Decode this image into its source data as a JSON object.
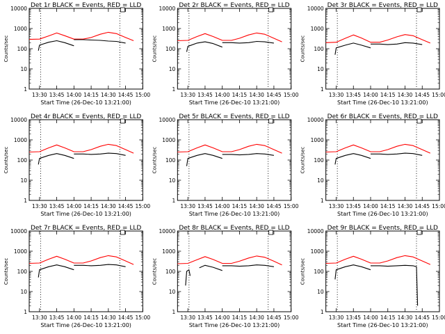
{
  "chart_data": [
    {
      "type": "line",
      "title": "Det 1r BLACK = Events, RED = LLD",
      "xlabel": "Start Time (26-Dec-10 13:21:00)",
      "ylabel": "Counts/sec",
      "yscale": "log",
      "ylim": [
        1,
        10000
      ],
      "xlim": [
        "13:21",
        "15:00"
      ],
      "x_ticks": [
        "13:30",
        "13:45",
        "14:00",
        "14:15",
        "14:30",
        "14:45",
        "15:00"
      ],
      "y_ticks": [
        "1",
        "10",
        "100",
        "1000",
        "10000"
      ],
      "vlines": [
        "13:31",
        "14:40"
      ],
      "series": [
        {
          "color": "#ff0000",
          "x": [
            "13:21",
            "13:30",
            "13:38",
            "13:45",
            "13:52",
            "14:00",
            "14:08",
            "14:15",
            "14:23",
            "14:30",
            "14:37",
            "14:45",
            "14:52"
          ],
          "values": [
            290,
            300,
            430,
            600,
            440,
            300,
            300,
            360,
            520,
            650,
            560,
            360,
            250
          ]
        },
        {
          "color": "#000000",
          "segments": [
            {
              "x": [
                "13:29",
                "13:30",
                "13:38",
                "13:45",
                "13:52",
                "14:00"
              ],
              "values": [
                80,
                150,
                210,
                250,
                200,
                140
              ]
            },
            {
              "x": [
                "14:00",
                "14:08",
                "14:15",
                "14:23",
                "14:30",
                "14:37",
                "14:45"
              ],
              "values": [
                280,
                280,
                270,
                260,
                240,
                230,
                190
              ]
            }
          ]
        }
      ]
    },
    {
      "type": "line",
      "title": "Det 2r BLACK = Events, RED = LLD",
      "xlabel": "Start Time (26-Dec-10 13:21:00)",
      "ylabel": "Counts/sec",
      "yscale": "log",
      "ylim": [
        1,
        10000
      ],
      "xlim": [
        "13:21",
        "15:00"
      ],
      "x_ticks": [
        "13:30",
        "13:45",
        "14:00",
        "14:15",
        "14:30",
        "14:45",
        "15:00"
      ],
      "y_ticks": [
        "1",
        "10",
        "100",
        "1000",
        "10000"
      ],
      "vlines": [
        "13:31",
        "14:40"
      ],
      "series": [
        {
          "color": "#ff0000",
          "x": [
            "13:21",
            "13:30",
            "13:38",
            "13:45",
            "13:52",
            "14:00",
            "14:08",
            "14:15",
            "14:23",
            "14:30",
            "14:37",
            "14:45",
            "14:52"
          ],
          "values": [
            250,
            260,
            400,
            560,
            400,
            260,
            260,
            330,
            480,
            600,
            520,
            330,
            220
          ]
        },
        {
          "color": "#000000",
          "segments": [
            {
              "x": [
                "13:29",
                "13:30",
                "13:38",
                "13:45",
                "13:52",
                "14:00"
              ],
              "values": [
                70,
                130,
                190,
                220,
                180,
                120
              ]
            },
            {
              "x": [
                "14:00",
                "14:08",
                "14:15",
                "14:23",
                "14:30",
                "14:37",
                "14:45"
              ],
              "values": [
                200,
                200,
                190,
                200,
                230,
                220,
                190
              ]
            }
          ]
        }
      ]
    },
    {
      "type": "line",
      "title": "Det 3r BLACK = Events, RED = LLD",
      "xlabel": "Start Time (26-Dec-10 13:21:00)",
      "ylabel": "Counts/sec",
      "yscale": "log",
      "ylim": [
        1,
        10000
      ],
      "xlim": [
        "13:21",
        "15:00"
      ],
      "x_ticks": [
        "13:30",
        "13:45",
        "14:00",
        "14:15",
        "14:30",
        "14:45",
        "15:00"
      ],
      "y_ticks": [
        "1",
        "10",
        "100",
        "1000",
        "10000"
      ],
      "vlines": [
        "13:31",
        "14:40"
      ],
      "series": [
        {
          "color": "#ff0000",
          "x": [
            "13:21",
            "13:30",
            "13:38",
            "13:45",
            "13:52",
            "14:00",
            "14:08",
            "14:15",
            "14:23",
            "14:30",
            "14:37",
            "14:45",
            "14:52"
          ],
          "values": [
            200,
            210,
            330,
            480,
            340,
            210,
            210,
            270,
            390,
            500,
            440,
            280,
            190
          ]
        },
        {
          "color": "#000000",
          "segments": [
            {
              "x": [
                "13:29",
                "13:30",
                "13:38",
                "13:45",
                "13:52",
                "14:00"
              ],
              "values": [
                50,
                110,
                150,
                190,
                150,
                110
              ]
            },
            {
              "x": [
                "14:00",
                "14:08",
                "14:15",
                "14:23",
                "14:30",
                "14:37",
                "14:45"
              ],
              "values": [
                170,
                170,
                160,
                170,
                200,
                190,
                160
              ]
            }
          ]
        }
      ]
    },
    {
      "type": "line",
      "title": "Det 4r BLACK = Events, RED = LLD",
      "xlabel": "Start Time (26-Dec-10 13:21:00)",
      "ylabel": "Counts/sec",
      "yscale": "log",
      "ylim": [
        1,
        10000
      ],
      "xlim": [
        "13:21",
        "15:00"
      ],
      "x_ticks": [
        "13:30",
        "13:45",
        "14:00",
        "14:15",
        "14:30",
        "14:45",
        "15:00"
      ],
      "y_ticks": [
        "1",
        "10",
        "100",
        "1000",
        "10000"
      ],
      "vlines": [
        "13:31",
        "14:40"
      ],
      "series": [
        {
          "color": "#ff0000",
          "x": [
            "13:21",
            "13:30",
            "13:38",
            "13:45",
            "13:52",
            "14:00",
            "14:08",
            "14:15",
            "14:23",
            "14:30",
            "14:37",
            "14:45",
            "14:52"
          ],
          "values": [
            250,
            260,
            400,
            560,
            400,
            260,
            260,
            330,
            480,
            600,
            520,
            330,
            220
          ]
        },
        {
          "color": "#000000",
          "segments": [
            {
              "x": [
                "13:29",
                "13:30",
                "13:38",
                "13:45",
                "13:52",
                "14:00"
              ],
              "values": [
                60,
                120,
                170,
                210,
                170,
                120
              ]
            },
            {
              "x": [
                "14:00",
                "14:08",
                "14:15",
                "14:23",
                "14:30",
                "14:37",
                "14:45"
              ],
              "values": [
                200,
                200,
                190,
                200,
                220,
                210,
                170
              ]
            }
          ]
        }
      ]
    },
    {
      "type": "line",
      "title": "Det 5r BLACK = Events, RED = LLD",
      "xlabel": "Start Time (26-Dec-10 13:21:00)",
      "ylabel": "Counts/sec",
      "yscale": "log",
      "ylim": [
        1,
        10000
      ],
      "xlim": [
        "13:21",
        "15:00"
      ],
      "x_ticks": [
        "13:30",
        "13:45",
        "14:00",
        "14:15",
        "14:30",
        "14:45",
        "15:00"
      ],
      "y_ticks": [
        "1",
        "10",
        "100",
        "1000",
        "10000"
      ],
      "vlines": [
        "13:31",
        "14:40"
      ],
      "series": [
        {
          "color": "#ff0000",
          "x": [
            "13:21",
            "13:30",
            "13:38",
            "13:45",
            "13:52",
            "14:00",
            "14:08",
            "14:15",
            "14:23",
            "14:30",
            "14:37",
            "14:45",
            "14:52"
          ],
          "values": [
            250,
            260,
            400,
            560,
            400,
            260,
            260,
            330,
            480,
            600,
            520,
            330,
            220
          ]
        },
        {
          "color": "#000000",
          "segments": [
            {
              "x": [
                "13:29",
                "13:30",
                "13:38",
                "13:45",
                "13:52",
                "14:00"
              ],
              "values": [
                50,
                120,
                170,
                210,
                170,
                120
              ]
            },
            {
              "x": [
                "14:00",
                "14:08",
                "14:15",
                "14:23",
                "14:30",
                "14:37",
                "14:45"
              ],
              "values": [
                190,
                190,
                180,
                190,
                210,
                200,
                170
              ]
            }
          ]
        }
      ]
    },
    {
      "type": "line",
      "title": "Det 6r BLACK = Events, RED = LLD",
      "xlabel": "Start Time (26-Dec-10 13:21:00)",
      "ylabel": "Counts/sec",
      "yscale": "log",
      "ylim": [
        1,
        10000
      ],
      "xlim": [
        "13:21",
        "15:00"
      ],
      "x_ticks": [
        "13:30",
        "13:45",
        "14:00",
        "14:15",
        "14:30",
        "14:45",
        "15:00"
      ],
      "y_ticks": [
        "1",
        "10",
        "100",
        "1000",
        "10000"
      ],
      "vlines": [
        "13:31",
        "14:40"
      ],
      "series": [
        {
          "color": "#ff0000",
          "x": [
            "13:21",
            "13:30",
            "13:38",
            "13:45",
            "13:52",
            "14:00",
            "14:08",
            "14:15",
            "14:23",
            "14:30",
            "14:37",
            "14:45",
            "14:52"
          ],
          "values": [
            250,
            260,
            400,
            560,
            400,
            260,
            260,
            330,
            480,
            600,
            520,
            330,
            220
          ]
        },
        {
          "color": "#000000",
          "segments": [
            {
              "x": [
                "13:29",
                "13:30",
                "13:38",
                "13:45",
                "13:52",
                "14:00"
              ],
              "values": [
                60,
                120,
                170,
                210,
                170,
                120
              ]
            },
            {
              "x": [
                "14:00",
                "14:08",
                "14:15",
                "14:23",
                "14:30",
                "14:37",
                "14:45"
              ],
              "values": [
                200,
                200,
                190,
                200,
                220,
                210,
                170
              ]
            }
          ]
        }
      ]
    },
    {
      "type": "line",
      "title": "Det 7r BLACK = Events, RED = LLD",
      "xlabel": "Start Time (26-Dec-10 13:21:00)",
      "ylabel": "Counts/sec",
      "yscale": "log",
      "ylim": [
        1,
        10000
      ],
      "xlim": [
        "13:21",
        "15:00"
      ],
      "x_ticks": [
        "13:30",
        "13:45",
        "14:00",
        "14:15",
        "14:30",
        "14:45",
        "15:00"
      ],
      "y_ticks": [
        "1",
        "10",
        "100",
        "1000",
        "10000"
      ],
      "vlines": [
        "13:31",
        "14:40"
      ],
      "series": [
        {
          "color": "#ff0000",
          "x": [
            "13:21",
            "13:30",
            "13:38",
            "13:45",
            "13:52",
            "14:00",
            "14:08",
            "14:15",
            "14:23",
            "14:30",
            "14:37",
            "14:45",
            "14:52"
          ],
          "values": [
            250,
            260,
            400,
            560,
            400,
            260,
            260,
            330,
            480,
            600,
            520,
            330,
            220
          ]
        },
        {
          "color": "#000000",
          "segments": [
            {
              "x": [
                "13:29",
                "13:30",
                "13:38",
                "13:45",
                "13:52",
                "14:00"
              ],
              "values": [
                50,
                120,
                170,
                210,
                170,
                120
              ]
            },
            {
              "x": [
                "14:00",
                "14:08",
                "14:15",
                "14:23",
                "14:30",
                "14:37",
                "14:45"
              ],
              "values": [
                200,
                200,
                190,
                200,
                220,
                210,
                170
              ]
            }
          ]
        }
      ]
    },
    {
      "type": "line",
      "title": "Det 8r BLACK = Events, RED = LLD",
      "xlabel": "Start Time (26-Dec-10 13:21:00)",
      "ylabel": "Counts/sec",
      "yscale": "log",
      "ylim": [
        1,
        10000
      ],
      "xlim": [
        "13:21",
        "15:00"
      ],
      "x_ticks": [
        "13:30",
        "13:45",
        "14:00",
        "14:15",
        "14:30",
        "14:45",
        "15:00"
      ],
      "y_ticks": [
        "1",
        "10",
        "100",
        "1000",
        "10000"
      ],
      "vlines": [
        "13:31",
        "14:40"
      ],
      "series": [
        {
          "color": "#ff0000",
          "x": [
            "13:21",
            "13:30",
            "13:38",
            "13:45",
            "13:52",
            "14:00",
            "14:08",
            "14:15",
            "14:23",
            "14:30",
            "14:37",
            "14:45",
            "14:52"
          ],
          "values": [
            240,
            250,
            380,
            540,
            390,
            250,
            250,
            320,
            460,
            580,
            500,
            320,
            210
          ]
        },
        {
          "color": "#000000",
          "segments": [
            {
              "x": [
                "13:28",
                "13:29",
                "13:31",
                "13:32"
              ],
              "values": [
                20,
                100,
                120,
                60
              ]
            },
            {
              "x": [
                "13:40",
                "13:45",
                "13:52",
                "14:00"
              ],
              "values": [
                150,
                200,
                160,
                110
              ]
            },
            {
              "x": [
                "14:00",
                "14:08",
                "14:15",
                "14:23",
                "14:30",
                "14:37",
                "14:45"
              ],
              "values": [
                190,
                190,
                180,
                190,
                210,
                200,
                170
              ]
            }
          ]
        }
      ]
    },
    {
      "type": "line",
      "title": "Det 9r BLACK = Events, RED = LLD",
      "xlabel": "Start Time (26-Dec-10 13:21:00)",
      "ylabel": "Counts/sec",
      "yscale": "log",
      "ylim": [
        1,
        10000
      ],
      "xlim": [
        "13:21",
        "15:00"
      ],
      "x_ticks": [
        "13:30",
        "13:45",
        "14:00",
        "14:15",
        "14:30",
        "14:45",
        "15:00"
      ],
      "y_ticks": [
        "1",
        "10",
        "100",
        "1000",
        "10000"
      ],
      "vlines": [
        "13:31",
        "14:40"
      ],
      "series": [
        {
          "color": "#ff0000",
          "x": [
            "13:21",
            "13:30",
            "13:38",
            "13:45",
            "13:52",
            "14:00",
            "14:08",
            "14:15",
            "14:23",
            "14:30",
            "14:37",
            "14:45",
            "14:52"
          ],
          "values": [
            250,
            260,
            400,
            560,
            400,
            260,
            260,
            330,
            480,
            600,
            520,
            330,
            220
          ]
        },
        {
          "color": "#000000",
          "segments": [
            {
              "x": [
                "13:29",
                "13:30",
                "13:38",
                "13:45",
                "13:52",
                "14:00"
              ],
              "values": [
                40,
                120,
                170,
                210,
                170,
                120
              ]
            },
            {
              "x": [
                "14:00",
                "14:08",
                "14:15",
                "14:23",
                "14:30",
                "14:37",
                "14:40",
                "14:41"
              ],
              "values": [
                190,
                190,
                180,
                190,
                200,
                190,
                170,
                2
              ]
            }
          ]
        }
      ]
    }
  ]
}
